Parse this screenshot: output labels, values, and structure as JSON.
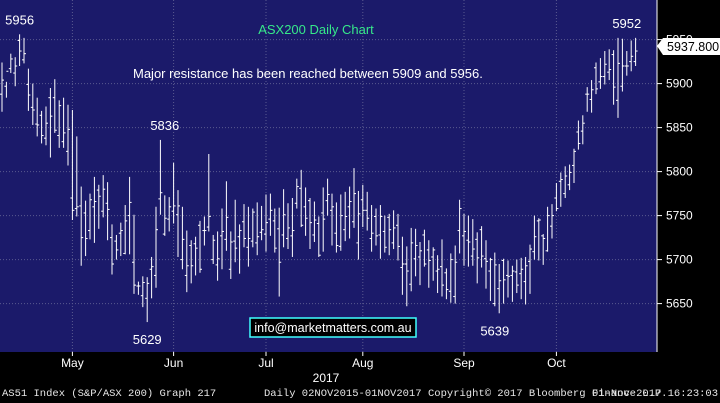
{
  "colors": {
    "background": "#000000",
    "plot_background": "#1b1a6a",
    "grid": "#5a5a90",
    "bars": "#ffffff",
    "title": "#36e88a",
    "text": "#ffffff",
    "email_text": "#ffffff",
    "email_border": "#40ffff",
    "price_box": "#ffffff",
    "price_text": "#000000",
    "footer_text": "#e6e6e6"
  },
  "footer": {
    "index_label": "AS51 Index (S&P/ASX 200) Graph 217",
    "range_label": "Daily 02NOV2015-01NOV2017",
    "copyright": "Copyright© 2017 Bloomberg Finance L.P.",
    "timestamp": "01-Nov-2017 16:23:03"
  },
  "chart_data": {
    "type": "ohlc",
    "title": "ASX200 Daily Chart",
    "annotation": "Major resistance has been reached between 5909 and 5956.",
    "watermark": "info@marketmatters.com.au",
    "year_label": "2017",
    "last_price": "5937.800",
    "ylim": [
      5595,
      5995
    ],
    "y_ticks": [
      5650,
      5700,
      5750,
      5800,
      5850,
      5900,
      5950
    ],
    "x_ticks": [
      {
        "label": "May",
        "day": 16
      },
      {
        "label": "Jun",
        "day": 39
      },
      {
        "label": "Jul",
        "day": 60
      },
      {
        "label": "Aug",
        "day": 82
      },
      {
        "label": "Sep",
        "day": 105
      },
      {
        "label": "Oct",
        "day": 126
      }
    ],
    "label_points": [
      {
        "text": "5956",
        "day": 4,
        "value": 5956,
        "pos": "above"
      },
      {
        "text": "5836",
        "day": 37,
        "value": 5836,
        "pos": "above"
      },
      {
        "text": "5629",
        "day": 33,
        "value": 5629,
        "pos": "below"
      },
      {
        "text": "5639",
        "day": 112,
        "value": 5639,
        "pos": "below"
      },
      {
        "text": "5952",
        "day": 142,
        "value": 5952,
        "pos": "above"
      }
    ],
    "highs": [
      5924,
      5902,
      5934,
      5930,
      5956,
      5952,
      5917,
      5900,
      5884,
      5869,
      5874,
      5895,
      5905,
      5881,
      5884,
      5876,
      5870,
      5840,
      5783,
      5767,
      5775,
      5794,
      5785,
      5796,
      5788,
      5740,
      5728,
      5742,
      5762,
      5794,
      5751,
      5675,
      5681,
      5680,
      5703,
      5760,
      5836,
      5773,
      5771,
      5810,
      5779,
      5760,
      5733,
      5722,
      5726,
      5744,
      5749,
      5820,
      5728,
      5732,
      5758,
      5789,
      5732,
      5768,
      5740,
      5763,
      5760,
      5758,
      5765,
      5761,
      5774,
      5775,
      5758,
      5759,
      5780,
      5764,
      5770,
      5792,
      5802,
      5782,
      5770,
      5766,
      5749,
      5782,
      5792,
      5775,
      5765,
      5774,
      5777,
      5783,
      5804,
      5778,
      5785,
      5777,
      5762,
      5758,
      5762,
      5750,
      5752,
      5756,
      5752,
      5726,
      5715,
      5736,
      5735,
      5720,
      5734,
      5722,
      5714,
      5705,
      5723,
      5690,
      5707,
      5716,
      5768,
      5752,
      5750,
      5746,
      5731,
      5738,
      5722,
      5702,
      5708,
      5695,
      5701,
      5699,
      5693,
      5700,
      5702,
      5703,
      5717,
      5750,
      5747,
      5729,
      5760,
      5763,
      5787,
      5799,
      5806,
      5808,
      5826,
      5858,
      5864,
      5896,
      5904,
      5924,
      5929,
      5937,
      5939,
      5938,
      5952,
      5951,
      5937,
      5949,
      5952
    ],
    "lows": [
      5868,
      5884,
      5912,
      5897,
      5920,
      5923,
      5869,
      5853,
      5840,
      5832,
      5830,
      5816,
      5844,
      5827,
      5827,
      5807,
      5745,
      5749,
      5693,
      5704,
      5723,
      5719,
      5735,
      5748,
      5722,
      5683,
      5700,
      5704,
      5706,
      5706,
      5661,
      5660,
      5646,
      5629,
      5656,
      5668,
      5751,
      5727,
      5732,
      5741,
      5703,
      5689,
      5663,
      5673,
      5682,
      5685,
      5716,
      5732,
      5695,
      5676,
      5689,
      5710,
      5678,
      5697,
      5684,
      5714,
      5692,
      5714,
      5705,
      5722,
      5709,
      5727,
      5708,
      5658,
      5714,
      5712,
      5703,
      5758,
      5737,
      5727,
      5712,
      5720,
      5703,
      5709,
      5750,
      5716,
      5708,
      5710,
      5721,
      5724,
      5736,
      5700,
      5737,
      5733,
      5709,
      5716,
      5701,
      5708,
      5705,
      5712,
      5699,
      5660,
      5647,
      5664,
      5681,
      5671,
      5692,
      5668,
      5676,
      5662,
      5658,
      5655,
      5651,
      5650,
      5707,
      5693,
      5692,
      5693,
      5673,
      5691,
      5667,
      5653,
      5647,
      5639,
      5650,
      5657,
      5652,
      5662,
      5655,
      5649,
      5661,
      5700,
      5699,
      5694,
      5709,
      5724,
      5755,
      5760,
      5770,
      5779,
      5787,
      5825,
      5831,
      5868,
      5867,
      5888,
      5894,
      5899,
      5904,
      5876,
      5861,
      5891,
      5909,
      5914,
      5920
    ],
    "opens": [
      5888,
      5897,
      5917,
      5912,
      5949,
      5927,
      5899,
      5873,
      5854,
      5864,
      5838,
      5884,
      5884,
      5841,
      5834,
      5823,
      5770,
      5758,
      5761,
      5753,
      5733,
      5760,
      5779,
      5755,
      5764,
      5725,
      5721,
      5730,
      5707,
      5750,
      5697,
      5670,
      5659,
      5656,
      5689,
      5682,
      5769,
      5729,
      5746,
      5755,
      5751,
      5700,
      5682,
      5716,
      5718,
      5739,
      5733,
      5737,
      5700,
      5694,
      5727,
      5723,
      5689,
      5721,
      5726,
      5743,
      5714,
      5721,
      5719,
      5731,
      5729,
      5746,
      5744,
      5735,
      5728,
      5724,
      5727,
      5764,
      5781,
      5760,
      5767,
      5728,
      5741,
      5753,
      5767,
      5756,
      5730,
      5715,
      5734,
      5760,
      5743,
      5719,
      5768,
      5756,
      5724,
      5749,
      5728,
      5732,
      5748,
      5719,
      5739,
      5691,
      5695,
      5672,
      5701,
      5703,
      5728,
      5711,
      5703,
      5687,
      5692,
      5685,
      5664,
      5658,
      5733,
      5727,
      5722,
      5704,
      5723,
      5734,
      5701,
      5687,
      5650,
      5667,
      5699,
      5682,
      5682,
      5686,
      5684,
      5675,
      5698,
      5709,
      5744,
      5727,
      5710,
      5738,
      5770,
      5789,
      5775,
      5785,
      5807,
      5845,
      5846,
      5888,
      5882,
      5918,
      5902,
      5908,
      5913,
      5933,
      5881,
      5897,
      5920,
      5925,
      5925
    ],
    "closes": [
      5904,
      5914,
      5928,
      5920,
      5937,
      5934,
      5887,
      5870,
      5853,
      5841,
      5855,
      5863,
      5847,
      5875,
      5844,
      5848,
      5756,
      5760,
      5725,
      5724,
      5768,
      5766,
      5772,
      5780,
      5757,
      5695,
      5711,
      5733,
      5744,
      5765,
      5671,
      5670,
      5674,
      5673,
      5692,
      5734,
      5776,
      5747,
      5760,
      5761,
      5761,
      5723,
      5693,
      5693,
      5713,
      5689,
      5733,
      5749,
      5722,
      5701,
      5732,
      5748,
      5720,
      5713,
      5733,
      5724,
      5724,
      5754,
      5726,
      5734,
      5742,
      5756,
      5713,
      5697,
      5751,
      5736,
      5733,
      5783,
      5739,
      5747,
      5742,
      5745,
      5705,
      5746,
      5774,
      5760,
      5716,
      5750,
      5749,
      5766,
      5775,
      5752,
      5756,
      5747,
      5730,
      5727,
      5749,
      5714,
      5734,
      5736,
      5715,
      5695,
      5687,
      5719,
      5716,
      5710,
      5695,
      5699,
      5711,
      5689,
      5671,
      5666,
      5700,
      5697,
      5758,
      5732,
      5720,
      5712,
      5702,
      5704,
      5698,
      5700,
      5694,
      5676,
      5677,
      5681,
      5687,
      5671,
      5689,
      5693,
      5712,
      5726,
      5745,
      5724,
      5750,
      5750,
      5758,
      5791,
      5795,
      5799,
      5823,
      5832,
      5855,
      5888,
      5893,
      5894,
      5908,
      5922,
      5916,
      5896,
      5923,
      5920,
      5920,
      5931,
      5937
    ]
  }
}
